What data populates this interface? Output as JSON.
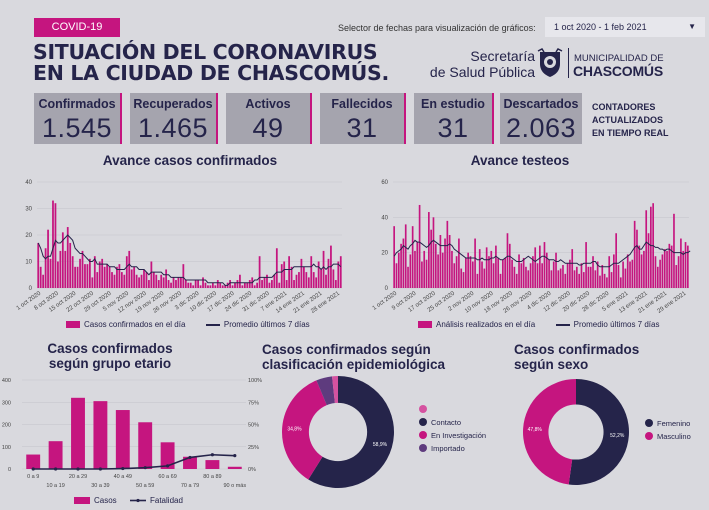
{
  "tag": "COVID-19",
  "title_line1": "SITUACIÓN DEL CORONAVIRUS",
  "title_line2": "EN LA CIUDAD DE CHASCOMÚS.",
  "selector_label": "Selector de fechas para visualización de gráficos:",
  "selector_value": "1 oct 2020 - 1 feb 2021",
  "logo": {
    "line1": "Secretaría",
    "line2": "de Salud Pública",
    "muni1": "MUNICIPALIDAD DE",
    "muni2": "CHASCOMÚS"
  },
  "stats": [
    {
      "label": "Confirmados",
      "value": "1.545"
    },
    {
      "label": "Recuperados",
      "value": "1.465"
    },
    {
      "label": "Activos",
      "value": "49"
    },
    {
      "label": "Fallecidos",
      "value": "31"
    },
    {
      "label": "En estudio",
      "value": "31"
    },
    {
      "label": "Descartados",
      "value": "2.063"
    }
  ],
  "counters_note": [
    "CONTADORES",
    "ACTUALIZADOS",
    "EN TIEMPO REAL"
  ],
  "colors": {
    "magenta": "#c5157f",
    "navy": "#25244a",
    "purple": "#5e3b7e",
    "pink": "#d552a0"
  },
  "chart_data": [
    {
      "type": "bar",
      "title": "Avance casos confirmados",
      "ylim": [
        0,
        40
      ],
      "yticks": [
        0,
        10,
        20,
        30,
        40
      ],
      "xticks": [
        "1 oct 2020",
        "8 oct 2020",
        "15 oct 2020",
        "22 oct 2020",
        "29 oct 2020",
        "5 nov 2020",
        "12 nov 2020",
        "19 nov 2020",
        "26 nov 2020",
        "3 dic 2020",
        "10 dic 2020",
        "17 dic 2020",
        "24 dic 2020",
        "31 dic 2020",
        "7 ene 2021",
        "14 ene 2021",
        "21 ene 2021",
        "28 ene 2021"
      ],
      "series": [
        {
          "name": "Casos confirmados en el día",
          "kind": "bar",
          "values": [
            17,
            8,
            5,
            15,
            22,
            11,
            33,
            32,
            10,
            14,
            21,
            14,
            23,
            17,
            12,
            8,
            8,
            11,
            14,
            9,
            9,
            11,
            4,
            12,
            6,
            10,
            11,
            8,
            9,
            8,
            6,
            5,
            8,
            9,
            6,
            5,
            12,
            14,
            7,
            8,
            5,
            4,
            5,
            7,
            6,
            3,
            10,
            6,
            5,
            3,
            5,
            4,
            7,
            3,
            2,
            4,
            3,
            4,
            4,
            9,
            3,
            2,
            2,
            1,
            3,
            3,
            1,
            4,
            2,
            1,
            1,
            2,
            1,
            3,
            2,
            1,
            1,
            2,
            3,
            1,
            2,
            3,
            5,
            1,
            2,
            2,
            3,
            4,
            1,
            2,
            12,
            3,
            4,
            5,
            2,
            3,
            5,
            15,
            2,
            9,
            10,
            3,
            12,
            8,
            3,
            5,
            6,
            11,
            8,
            6,
            4,
            12,
            6,
            4,
            10,
            7,
            14,
            5,
            11,
            16,
            7,
            3,
            10,
            12
          ]
        },
        {
          "name": "Promedio últimos 7 días",
          "kind": "line",
          "values": [
            17,
            15,
            12,
            11,
            12,
            12,
            15,
            18,
            17,
            17,
            18,
            19,
            20,
            19,
            18,
            15,
            14,
            13,
            13,
            12,
            11,
            10,
            10,
            11,
            9,
            9,
            9,
            9,
            9,
            8,
            8,
            8,
            7,
            7,
            7,
            7,
            8,
            9,
            8,
            8,
            8,
            7,
            7,
            7,
            6,
            5,
            6,
            6,
            6,
            6,
            6,
            5,
            5,
            5,
            4,
            4,
            4,
            4,
            4,
            4,
            3,
            3,
            3,
            3,
            3,
            3,
            3,
            3,
            3,
            2,
            2,
            2,
            2,
            2,
            2,
            2,
            1,
            1,
            2,
            2,
            2,
            2,
            2,
            2,
            2,
            2,
            2,
            2,
            3,
            3,
            4,
            4,
            4,
            4,
            4,
            4,
            5,
            6,
            6,
            6,
            7,
            7,
            7,
            7,
            8,
            8,
            8,
            8,
            8,
            8,
            8,
            8,
            9,
            8,
            8,
            7,
            8,
            7,
            8,
            8,
            9,
            9,
            9,
            8
          ]
        }
      ]
    },
    {
      "type": "bar",
      "title": "Avance testeos",
      "ylim": [
        0,
        60
      ],
      "yticks": [
        0,
        20,
        40,
        60
      ],
      "xticks": [
        "1 oct 2020",
        "9 oct 2020",
        "17 oct 2020",
        "25 oct 2020",
        "2 nov 2020",
        "10 nov 2020",
        "18 nov 2020",
        "26 nov 2020",
        "4 dic 2020",
        "12 dic 2020",
        "20 dic 2020",
        "28 dic 2020",
        "5 ene 2021",
        "13 ene 2021",
        "21 ene 2021",
        "29 ene 2021"
      ],
      "series": [
        {
          "name": "Análisis realizados en el día",
          "kind": "bar",
          "values": [
            35,
            14,
            20,
            25,
            28,
            36,
            12,
            19,
            35,
            21,
            26,
            47,
            15,
            21,
            16,
            43,
            33,
            40,
            25,
            19,
            30,
            20,
            28,
            38,
            30,
            21,
            14,
            18,
            28,
            11,
            9,
            17,
            20,
            18,
            15,
            28,
            8,
            22,
            15,
            11,
            23,
            18,
            21,
            14,
            24,
            17,
            8,
            16,
            17,
            31,
            25,
            16,
            12,
            8,
            19,
            14,
            17,
            12,
            10,
            14,
            18,
            23,
            14,
            24,
            14,
            26,
            20,
            16,
            10,
            15,
            20,
            10,
            11,
            13,
            8,
            14,
            16,
            22,
            10,
            12,
            8,
            14,
            9,
            26,
            12,
            12,
            18,
            10,
            15,
            7,
            13,
            8,
            6,
            18,
            9,
            19,
            31,
            13,
            6,
            15,
            11,
            19,
            15,
            16,
            38,
            33,
            24,
            19,
            21,
            44,
            31,
            46,
            48,
            18,
            12,
            16,
            19,
            22,
            21,
            25,
            24,
            42,
            13,
            18,
            28,
            21,
            26,
            24
          ]
        },
        {
          "name": "Promedio últimos 7 días",
          "kind": "line",
          "values": [
            18,
            20,
            21,
            22,
            24,
            23,
            22,
            24,
            25,
            27,
            26,
            26,
            25,
            24,
            23,
            24,
            26,
            27,
            26,
            25,
            24,
            24,
            24,
            24,
            25,
            24,
            22,
            21,
            20,
            19,
            18,
            17,
            17,
            17,
            17,
            17,
            16,
            16,
            17,
            16,
            16,
            16,
            17,
            17,
            18,
            17,
            16,
            16,
            17,
            18,
            18,
            17,
            16,
            15,
            15,
            15,
            16,
            17,
            18,
            17,
            16,
            15,
            16,
            17,
            18,
            18,
            17,
            16,
            16,
            16,
            15,
            15,
            16,
            15,
            14,
            14,
            14,
            14,
            14,
            14,
            13,
            13,
            14,
            14,
            14,
            14,
            15,
            15,
            13,
            12,
            12,
            12,
            12,
            12,
            13,
            14,
            14,
            14,
            15,
            16,
            17,
            18,
            19,
            21,
            23,
            24,
            22,
            22,
            24,
            26,
            25,
            24,
            24,
            23,
            23,
            22,
            22,
            21,
            22,
            22,
            21,
            20,
            20,
            20,
            20,
            19,
            20,
            20,
            21
          ]
        }
      ]
    },
    {
      "type": "bar",
      "title": "Casos confirmados según grupo etario",
      "categories": [
        "0 a 9",
        "10 a 19",
        "20 a 29",
        "30 a 39",
        "40 a 49",
        "50 a 59",
        "60 a 69",
        "70 a 79",
        "80 a 89",
        "90 o más"
      ],
      "ylim": [
        0,
        400
      ],
      "yticks": [
        0,
        100,
        200,
        300,
        400
      ],
      "y2lim": [
        0,
        100
      ],
      "y2ticks": [
        "0%",
        "25%",
        "50%",
        "75%",
        "100%"
      ],
      "series": [
        {
          "name": "Casos",
          "kind": "bar",
          "values": [
            65,
            125,
            320,
            305,
            265,
            210,
            120,
            55,
            40,
            10
          ]
        },
        {
          "name": "Fatalidad",
          "kind": "line",
          "axis": "right",
          "values": [
            0,
            0,
            0,
            0,
            0.5,
            1.5,
            3.5,
            13,
            16,
            15
          ]
        }
      ]
    },
    {
      "type": "pie",
      "title_line1": "Casos confirmados según",
      "title_line2": "clasificación epidemiológica",
      "series": [
        {
          "name": "Contacto",
          "value": 58.9,
          "label": "58,9%",
          "color": "#25244a"
        },
        {
          "name": "En Investigación",
          "value": 34.8,
          "label": "34,8%",
          "color": "#c5157f"
        },
        {
          "name": "Importado",
          "value": 4.6,
          "color": "#5e3b7e"
        },
        {
          "name": "",
          "value": 1.7,
          "color": "#d552a0"
        }
      ],
      "legend": [
        {
          "label": "Contacto",
          "color": "#d552a0"
        },
        {
          "label": "Contacto",
          "color": "#25244a"
        },
        {
          "label": "En Investigación",
          "color": "#c5157f"
        },
        {
          "label": "Importado",
          "color": "#5e3b7e"
        }
      ]
    },
    {
      "type": "pie",
      "title_line1": "Casos confirmados",
      "title_line2": "según sexo",
      "series": [
        {
          "name": "Femenino",
          "value": 52.2,
          "label": "52,2%",
          "color": "#25244a"
        },
        {
          "name": "Masculino",
          "value": 47.8,
          "label": "47,8%",
          "color": "#c5157f"
        }
      ]
    }
  ]
}
